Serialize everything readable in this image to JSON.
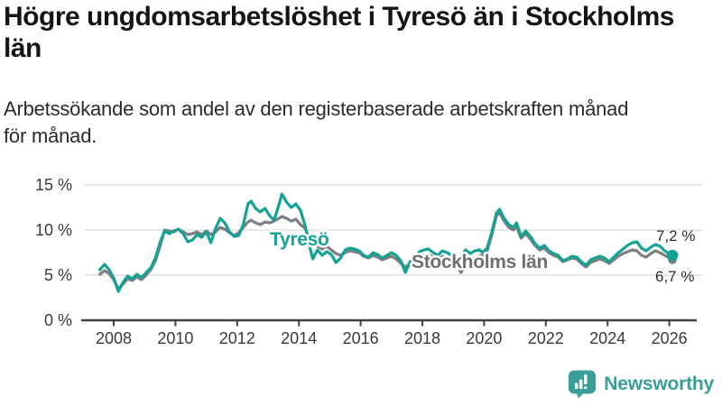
{
  "header": {
    "title": "Högre ungdomsarbetslöshet i Tyresö än i Stockholms län",
    "subtitle": "Arbetssökande som andel av den registerbaserade arbetskraften månad för månad."
  },
  "footer": {
    "brand": "Newsworthy"
  },
  "chart_data": {
    "type": "line",
    "unit": "%",
    "title": "Högre ungdomsarbetslöshet i Tyresö än i Stockholms län",
    "xlabel": "",
    "ylabel": "",
    "xlim": [
      2007.3,
      2026.9
    ],
    "ylim": [
      0,
      15.5
    ],
    "grid": "horizontal",
    "legend_position": "inline-labels",
    "colors": {
      "tyreso_line": "#14a294",
      "stockholm_line": "#7e7f83",
      "stockholm_label": "#6e6f73",
      "axis": "#404040",
      "axis_text": "#3a3a3a",
      "grid": "#d9d9d9",
      "end_label_text": "#2f2f2f",
      "brand_teal": "#3a9e98"
    },
    "yticks": [
      {
        "value": 0,
        "label": "0 %"
      },
      {
        "value": 5,
        "label": "5 %"
      },
      {
        "value": 10,
        "label": "10 %"
      },
      {
        "value": 15,
        "label": "15 %"
      }
    ],
    "xticks": [
      {
        "value": 2008,
        "label": "2008"
      },
      {
        "value": 2010,
        "label": "2010"
      },
      {
        "value": 2012,
        "label": "2012"
      },
      {
        "value": 2014,
        "label": "2014"
      },
      {
        "value": 2016,
        "label": "2016"
      },
      {
        "value": 2018,
        "label": "2018"
      },
      {
        "value": 2020,
        "label": "2020"
      },
      {
        "value": 2022,
        "label": "2022"
      },
      {
        "value": 2024,
        "label": "2024"
      },
      {
        "value": 2026,
        "label": "2026"
      }
    ],
    "series": [
      {
        "name": "Tyresö",
        "color": "#14a294",
        "label_color": "#14a294",
        "end_label": "7,2 %",
        "end_value": 7.2,
        "points": [
          [
            2007.55,
            5.6
          ],
          [
            2007.7,
            6.2
          ],
          [
            2007.85,
            5.6
          ],
          [
            2008.0,
            4.7
          ],
          [
            2008.15,
            3.2
          ],
          [
            2008.3,
            4.2
          ],
          [
            2008.45,
            4.9
          ],
          [
            2008.6,
            4.6
          ],
          [
            2008.75,
            5.1
          ],
          [
            2008.9,
            4.7
          ],
          [
            2009.05,
            5.3
          ],
          [
            2009.2,
            5.8
          ],
          [
            2009.35,
            6.9
          ],
          [
            2009.5,
            8.6
          ],
          [
            2009.65,
            9.9
          ],
          [
            2009.8,
            9.6
          ],
          [
            2009.95,
            9.9
          ],
          [
            2010.1,
            10.1
          ],
          [
            2010.25,
            9.6
          ],
          [
            2010.4,
            8.7
          ],
          [
            2010.55,
            8.9
          ],
          [
            2010.7,
            9.5
          ],
          [
            2010.85,
            9.2
          ],
          [
            2011.0,
            9.8
          ],
          [
            2011.15,
            8.6
          ],
          [
            2011.3,
            10.2
          ],
          [
            2011.45,
            11.3
          ],
          [
            2011.6,
            10.8
          ],
          [
            2011.75,
            9.8
          ],
          [
            2011.9,
            9.3
          ],
          [
            2012.05,
            9.4
          ],
          [
            2012.2,
            10.6
          ],
          [
            2012.35,
            12.9
          ],
          [
            2012.45,
            13.2
          ],
          [
            2012.6,
            12.4
          ],
          [
            2012.75,
            12.0
          ],
          [
            2012.9,
            12.4
          ],
          [
            2013.05,
            11.6
          ],
          [
            2013.2,
            11.1
          ],
          [
            2013.35,
            12.8
          ],
          [
            2013.45,
            14.0
          ],
          [
            2013.6,
            13.1
          ],
          [
            2013.75,
            12.5
          ],
          [
            2013.9,
            12.9
          ],
          [
            2014.05,
            12.2
          ],
          [
            2014.2,
            10.5
          ],
          [
            2014.3,
            8.8
          ],
          [
            2014.45,
            6.8
          ],
          [
            2014.6,
            7.8
          ],
          [
            2014.75,
            7.2
          ],
          [
            2014.9,
            7.6
          ],
          [
            2015.05,
            7.3
          ],
          [
            2015.2,
            6.4
          ],
          [
            2015.35,
            6.9
          ],
          [
            2015.5,
            7.8
          ],
          [
            2015.65,
            8.0
          ],
          [
            2015.8,
            7.9
          ],
          [
            2015.95,
            7.7
          ],
          [
            2016.1,
            7.2
          ],
          [
            2016.25,
            7.0
          ],
          [
            2016.4,
            7.5
          ],
          [
            2016.55,
            7.3
          ],
          [
            2016.7,
            6.9
          ],
          [
            2016.85,
            7.2
          ],
          [
            2017.0,
            7.5
          ],
          [
            2017.15,
            7.2
          ],
          [
            2017.3,
            6.6
          ],
          [
            2017.45,
            5.3
          ],
          [
            2017.6,
            6.5
          ],
          [
            2017.75,
            7.0
          ],
          [
            2017.9,
            7.6
          ],
          [
            2018.05,
            7.8
          ],
          [
            2018.2,
            7.9
          ],
          [
            2018.35,
            7.5
          ],
          [
            2018.5,
            7.2
          ],
          [
            2018.65,
            7.7
          ],
          [
            2018.8,
            7.5
          ],
          [
            2018.95,
            7.2
          ],
          [
            2019.1,
            6.8
          ],
          [
            2019.25,
            7.0
          ],
          [
            2019.4,
            7.8
          ],
          [
            2019.55,
            7.4
          ],
          [
            2019.7,
            7.7
          ],
          [
            2019.85,
            7.8
          ],
          [
            2019.95,
            7.5
          ],
          [
            2020.1,
            8.0
          ],
          [
            2020.25,
            9.8
          ],
          [
            2020.4,
            11.9
          ],
          [
            2020.5,
            12.3
          ],
          [
            2020.65,
            11.3
          ],
          [
            2020.8,
            10.6
          ],
          [
            2020.95,
            10.3
          ],
          [
            2021.05,
            10.8
          ],
          [
            2021.2,
            9.3
          ],
          [
            2021.35,
            9.9
          ],
          [
            2021.5,
            9.3
          ],
          [
            2021.65,
            8.5
          ],
          [
            2021.8,
            8.0
          ],
          [
            2021.95,
            8.3
          ],
          [
            2022.1,
            7.7
          ],
          [
            2022.25,
            7.4
          ],
          [
            2022.4,
            7.2
          ],
          [
            2022.55,
            6.6
          ],
          [
            2022.7,
            6.8
          ],
          [
            2022.85,
            7.1
          ],
          [
            2023.0,
            7.0
          ],
          [
            2023.15,
            6.5
          ],
          [
            2023.3,
            6.1
          ],
          [
            2023.45,
            6.7
          ],
          [
            2023.6,
            6.9
          ],
          [
            2023.75,
            7.1
          ],
          [
            2023.9,
            6.9
          ],
          [
            2024.05,
            6.5
          ],
          [
            2024.2,
            7.0
          ],
          [
            2024.35,
            7.5
          ],
          [
            2024.5,
            7.9
          ],
          [
            2024.65,
            8.3
          ],
          [
            2024.8,
            8.6
          ],
          [
            2024.95,
            8.7
          ],
          [
            2025.1,
            8.0
          ],
          [
            2025.25,
            7.7
          ],
          [
            2025.4,
            8.1
          ],
          [
            2025.55,
            8.4
          ],
          [
            2025.7,
            8.2
          ],
          [
            2025.85,
            7.7
          ],
          [
            2026.0,
            7.4
          ],
          [
            2026.1,
            7.2
          ]
        ]
      },
      {
        "name": "Stockholms län",
        "color": "#7e7f83",
        "label_color": "#6e6f73",
        "end_label": "6,7 %",
        "end_value": 6.7,
        "points": [
          [
            2007.55,
            5.1
          ],
          [
            2007.7,
            5.5
          ],
          [
            2007.85,
            5.2
          ],
          [
            2008.0,
            4.5
          ],
          [
            2008.15,
            3.5
          ],
          [
            2008.3,
            4.0
          ],
          [
            2008.45,
            4.6
          ],
          [
            2008.6,
            4.4
          ],
          [
            2008.75,
            4.8
          ],
          [
            2008.9,
            4.5
          ],
          [
            2009.05,
            5.0
          ],
          [
            2009.2,
            5.6
          ],
          [
            2009.35,
            6.6
          ],
          [
            2009.5,
            8.2
          ],
          [
            2009.65,
            10.0
          ],
          [
            2009.8,
            9.9
          ],
          [
            2009.95,
            9.8
          ],
          [
            2010.1,
            10.1
          ],
          [
            2010.25,
            9.8
          ],
          [
            2010.4,
            9.5
          ],
          [
            2010.55,
            9.6
          ],
          [
            2010.7,
            9.8
          ],
          [
            2010.85,
            9.5
          ],
          [
            2011.0,
            9.9
          ],
          [
            2011.15,
            9.5
          ],
          [
            2011.3,
            9.8
          ],
          [
            2011.45,
            10.3
          ],
          [
            2011.6,
            10.1
          ],
          [
            2011.75,
            9.7
          ],
          [
            2011.9,
            9.4
          ],
          [
            2012.05,
            9.7
          ],
          [
            2012.2,
            10.3
          ],
          [
            2012.35,
            10.9
          ],
          [
            2012.45,
            11.1
          ],
          [
            2012.6,
            10.8
          ],
          [
            2012.75,
            10.6
          ],
          [
            2012.9,
            10.9
          ],
          [
            2013.05,
            10.8
          ],
          [
            2013.2,
            11.0
          ],
          [
            2013.35,
            11.3
          ],
          [
            2013.45,
            11.5
          ],
          [
            2013.6,
            11.3
          ],
          [
            2013.75,
            11.0
          ],
          [
            2013.9,
            11.2
          ],
          [
            2014.05,
            10.6
          ],
          [
            2014.2,
            10.2
          ],
          [
            2014.3,
            9.4
          ],
          [
            2014.45,
            8.6
          ],
          [
            2014.6,
            8.2
          ],
          [
            2014.75,
            7.9
          ],
          [
            2014.9,
            8.2
          ],
          [
            2015.05,
            7.8
          ],
          [
            2015.2,
            7.4
          ],
          [
            2015.35,
            7.2
          ],
          [
            2015.5,
            7.5
          ],
          [
            2015.65,
            7.7
          ],
          [
            2015.8,
            7.6
          ],
          [
            2015.95,
            7.5
          ],
          [
            2016.1,
            7.1
          ],
          [
            2016.25,
            6.9
          ],
          [
            2016.4,
            7.2
          ],
          [
            2016.55,
            7.0
          ],
          [
            2016.7,
            6.7
          ],
          [
            2016.85,
            6.9
          ],
          [
            2017.0,
            7.1
          ],
          [
            2017.15,
            6.8
          ],
          [
            2017.3,
            6.3
          ],
          [
            2017.45,
            5.9
          ],
          [
            2017.6,
            6.3
          ],
          [
            2017.75,
            6.7
          ],
          [
            2017.9,
            7.1
          ],
          [
            2018.05,
            7.2
          ],
          [
            2018.2,
            7.3
          ],
          [
            2018.35,
            7.0
          ],
          [
            2018.5,
            6.8
          ],
          [
            2018.65,
            7.1
          ],
          [
            2018.8,
            6.9
          ],
          [
            2018.95,
            6.6
          ],
          [
            2019.1,
            6.1
          ],
          [
            2019.25,
            5.3
          ],
          [
            2019.4,
            6.2
          ],
          [
            2019.55,
            6.6
          ],
          [
            2019.7,
            6.9
          ],
          [
            2019.85,
            7.1
          ],
          [
            2019.95,
            7.2
          ],
          [
            2020.1,
            7.7
          ],
          [
            2020.25,
            9.5
          ],
          [
            2020.4,
            11.6
          ],
          [
            2020.5,
            11.9
          ],
          [
            2020.65,
            11.0
          ],
          [
            2020.8,
            10.3
          ],
          [
            2020.95,
            10.0
          ],
          [
            2021.05,
            10.4
          ],
          [
            2021.2,
            9.1
          ],
          [
            2021.35,
            9.6
          ],
          [
            2021.5,
            9.0
          ],
          [
            2021.65,
            8.3
          ],
          [
            2021.8,
            7.8
          ],
          [
            2021.95,
            8.0
          ],
          [
            2022.1,
            7.5
          ],
          [
            2022.25,
            7.2
          ],
          [
            2022.4,
            7.0
          ],
          [
            2022.55,
            6.5
          ],
          [
            2022.7,
            6.7
          ],
          [
            2022.85,
            6.9
          ],
          [
            2023.0,
            6.8
          ],
          [
            2023.15,
            6.3
          ],
          [
            2023.3,
            5.9
          ],
          [
            2023.45,
            6.4
          ],
          [
            2023.6,
            6.6
          ],
          [
            2023.75,
            6.8
          ],
          [
            2023.9,
            6.6
          ],
          [
            2024.05,
            6.3
          ],
          [
            2024.2,
            6.7
          ],
          [
            2024.35,
            7.1
          ],
          [
            2024.5,
            7.4
          ],
          [
            2024.65,
            7.6
          ],
          [
            2024.8,
            7.8
          ],
          [
            2024.95,
            7.7
          ],
          [
            2025.1,
            7.2
          ],
          [
            2025.25,
            7.0
          ],
          [
            2025.4,
            7.4
          ],
          [
            2025.55,
            7.7
          ],
          [
            2025.7,
            7.5
          ],
          [
            2025.85,
            7.2
          ],
          [
            2026.0,
            6.9
          ],
          [
            2026.1,
            6.7
          ]
        ]
      }
    ]
  }
}
